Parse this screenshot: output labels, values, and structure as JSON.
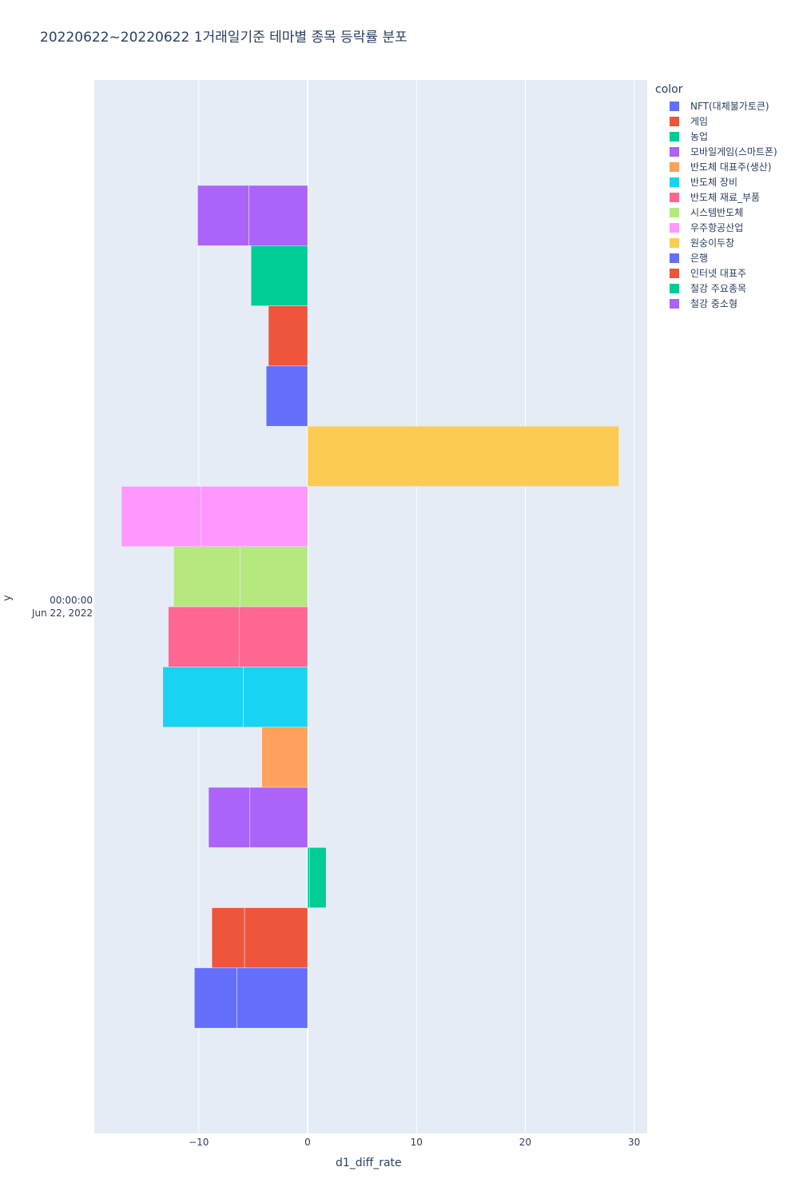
{
  "chart_data": {
    "type": "bar",
    "orientation": "horizontal",
    "barmode": "relative",
    "title": "20220622~20220622 1거래일기준 테마별 종목 등락률 분포",
    "xlabel": "d1_diff_rate",
    "ylabel": "y",
    "xlim": [
      -19.6,
      31.2
    ],
    "xticks": [
      {
        "value": -10,
        "label": "−10"
      },
      {
        "value": 0,
        "label": "0"
      },
      {
        "value": 10,
        "label": "10"
      },
      {
        "value": 20,
        "label": "20"
      },
      {
        "value": 30,
        "label": "30"
      }
    ],
    "ytick": {
      "line1": "00:00:00",
      "line2": "Jun 22, 2022"
    },
    "grid": true,
    "legend_title": "color",
    "legend_position": "right",
    "series": [
      {
        "name": "NFT(대체불가토큰)",
        "color": "#636efa",
        "values": [
          -6.5,
          -3.9
        ]
      },
      {
        "name": "게임",
        "color": "#EF553B",
        "values": [
          -5.8,
          -3.0
        ]
      },
      {
        "name": "농업",
        "color": "#00cc96",
        "values": [
          0.2,
          1.5
        ]
      },
      {
        "name": "모바일게임(스마트폰)",
        "color": "#ab63fa",
        "values": [
          -5.3,
          -3.8
        ]
      },
      {
        "name": "반도체 대표주(생산)",
        "color": "#FFA15A",
        "values": [
          -4.2
        ]
      },
      {
        "name": "반도체 장비",
        "color": "#19d3f3",
        "values": [
          -5.9,
          -7.4
        ]
      },
      {
        "name": "반도체 재료_부품",
        "color": "#FF6692",
        "values": [
          -6.3,
          -6.5
        ]
      },
      {
        "name": "시스템반도체",
        "color": "#B6E880",
        "values": [
          -6.2,
          -6.1
        ]
      },
      {
        "name": "우주항공산업",
        "color": "#FF97FF",
        "values": [
          -9.8,
          -7.3
        ]
      },
      {
        "name": "원숭이두창",
        "color": "#FECB52",
        "values": [
          28.6
        ]
      },
      {
        "name": "은행",
        "color": "#636efa",
        "values": [
          -3.8
        ]
      },
      {
        "name": "인터넷 대표주",
        "color": "#EF553B",
        "values": [
          -3.6
        ]
      },
      {
        "name": "철강 주요종목",
        "color": "#00cc96",
        "values": [
          -5.2
        ]
      },
      {
        "name": "철강 중소형",
        "color": "#ab63fa",
        "values": [
          -5.4,
          -4.7
        ]
      }
    ]
  }
}
